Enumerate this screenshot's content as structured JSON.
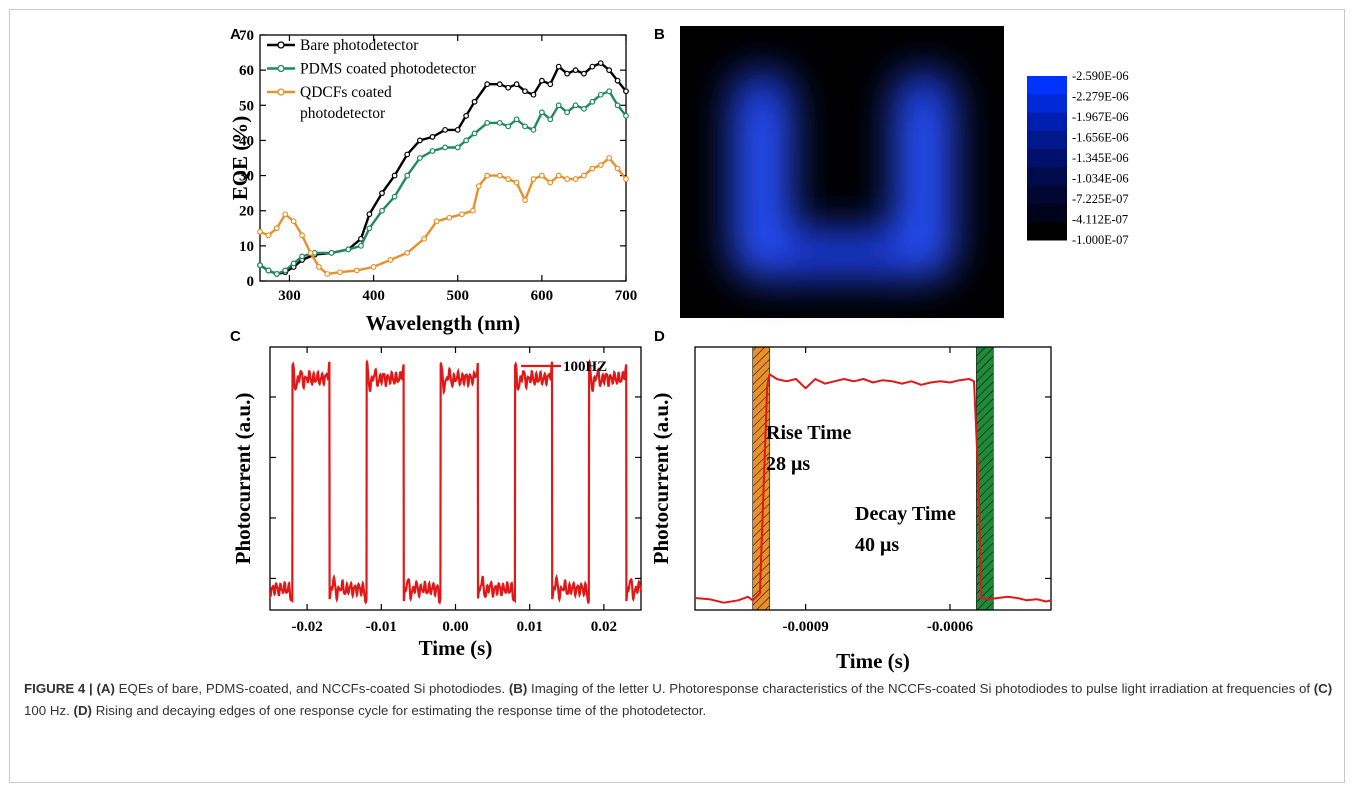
{
  "caption": {
    "figure_label": "FIGURE 4 |",
    "parts": [
      {
        "bold": true,
        "text": "(A)"
      },
      {
        "bold": false,
        "text": " EQEs of bare, PDMS-coated, and NCCFs-coated Si photodiodes. "
      },
      {
        "bold": true,
        "text": "(B)"
      },
      {
        "bold": false,
        "text": " Imaging of the letter U. Photoresponse characteristics of the NCCFs-coated Si photodiodes to pulse light irradiation at frequencies of "
      },
      {
        "bold": true,
        "text": "(C)"
      },
      {
        "bold": false,
        "text": " 100 Hz. "
      },
      {
        "bold": true,
        "text": "(D)"
      },
      {
        "bold": false,
        "text": " Rising and decaying edges of one response cycle for estimating the response time of the photodetector."
      }
    ]
  },
  "chart_data": [
    {
      "panel": "A",
      "type": "line",
      "xlabel": "Wavelength (nm)",
      "ylabel": "EQE (%)",
      "xlim": [
        265,
        700
      ],
      "ylim": [
        0,
        70
      ],
      "xticks": [
        300,
        400,
        500,
        600,
        700
      ],
      "yticks": [
        0,
        10,
        20,
        30,
        40,
        50,
        60,
        70
      ],
      "legend_position": "top-left",
      "series": [
        {
          "name": "Bare photodetector",
          "color": "#000000",
          "x": [
            265,
            275,
            285,
            295,
            305,
            315,
            330,
            350,
            370,
            385,
            395,
            410,
            425,
            440,
            455,
            470,
            485,
            500,
            510,
            520,
            535,
            550,
            560,
            570,
            580,
            590,
            600,
            610,
            620,
            630,
            640,
            650,
            660,
            670,
            680,
            690,
            700
          ],
          "y": [
            4.5,
            3,
            2,
            2.5,
            4,
            6,
            7.5,
            8,
            9,
            12,
            19,
            25,
            30,
            36,
            40,
            41,
            43,
            43,
            47,
            51,
            56,
            56,
            55,
            56,
            54,
            53,
            57,
            56,
            61,
            59,
            60,
            59,
            61,
            62,
            60,
            57,
            54
          ]
        },
        {
          "name": "PDMS coated photodetector",
          "color": "#1f8a5a",
          "x": [
            265,
            275,
            285,
            295,
            305,
            315,
            330,
            350,
            370,
            385,
            395,
            410,
            425,
            440,
            455,
            470,
            485,
            500,
            510,
            520,
            535,
            550,
            560,
            570,
            580,
            590,
            600,
            610,
            620,
            630,
            640,
            650,
            660,
            670,
            680,
            690,
            700
          ],
          "y": [
            4.5,
            3,
            2,
            3,
            5,
            7,
            8,
            8,
            9,
            10,
            15,
            20,
            24,
            30,
            35,
            37,
            38,
            38,
            40,
            42,
            45,
            45,
            44,
            46,
            44,
            43,
            48,
            46,
            50,
            48,
            50,
            49,
            51,
            53,
            54,
            50,
            47
          ]
        },
        {
          "name": "QDCFs coated\nphotodetector",
          "color": "#e8902a",
          "x": [
            265,
            275,
            285,
            295,
            305,
            315,
            325,
            335,
            345,
            360,
            380,
            400,
            420,
            440,
            460,
            475,
            490,
            505,
            518,
            525,
            535,
            550,
            560,
            570,
            580,
            590,
            600,
            610,
            620,
            630,
            640,
            650,
            660,
            670,
            680,
            690,
            700
          ],
          "y": [
            14,
            13,
            15,
            19,
            17,
            13,
            8,
            4,
            2,
            2.5,
            3,
            4,
            6,
            8,
            12,
            17,
            18,
            19,
            20,
            27,
            30,
            30,
            29,
            28,
            23,
            29,
            30,
            28,
            30,
            29,
            29,
            30,
            32,
            33,
            35,
            32,
            29
          ]
        }
      ]
    },
    {
      "panel": "B",
      "type": "heatmap",
      "colorbar_labels": [
        "-2.590E-06",
        "-2.279E-06",
        "-1.967E-06",
        "-1.656E-06",
        "-1.345E-06",
        "-1.034E-06",
        "-7.225E-07",
        "-4.112E-07",
        "-1.000E-07"
      ],
      "colorbar_colors": [
        "#0033ff",
        "#0028d6",
        "#001fb0",
        "#00188c",
        "#00116b",
        "#000b4d",
        "#000733",
        "#00031c",
        "#000000"
      ]
    },
    {
      "panel": "C",
      "type": "line",
      "xlabel": "Time (s)",
      "ylabel": "Photocurrent (a.u.)",
      "xlim": [
        -0.025,
        0.025
      ],
      "ylim": [
        0,
        1
      ],
      "xticks": [
        -0.02,
        -0.01,
        0.0,
        0.01,
        0.02
      ],
      "xtick_labels": [
        "-0.02",
        "-0.01",
        "0.00",
        "0.01",
        "0.02"
      ],
      "legend_position": "top-right",
      "series": [
        {
          "name": "100HZ",
          "color": "#e01818",
          "period": 0.01,
          "high_start": -0.022,
          "high_duration": 0.005,
          "low_level": 0.08,
          "high_level": 0.88
        }
      ]
    },
    {
      "panel": "D",
      "type": "line",
      "xlabel": "Time (s)",
      "ylabel": "Photocurrent (a.u.)",
      "xlim": [
        -0.00113,
        -0.00039
      ],
      "ylim": [
        0,
        1
      ],
      "xticks": [
        -0.0009,
        -0.0006
      ],
      "xtick_labels": [
        "-0.0009",
        "-0.0006"
      ],
      "series": [
        {
          "name": "",
          "color": "#e01818",
          "x": [
            -0.00113,
            -0.0011,
            -0.00107,
            -0.00104,
            -0.00102,
            -0.00101,
            -0.000995,
            -0.00098,
            -0.000975,
            -0.00096,
            -0.00094,
            -0.00092,
            -0.0009,
            -0.00088,
            -0.00086,
            -0.00084,
            -0.00082,
            -0.0008,
            -0.00078,
            -0.00076,
            -0.00074,
            -0.00072,
            -0.0007,
            -0.00068,
            -0.00066,
            -0.00064,
            -0.00062,
            -0.0006,
            -0.00058,
            -0.00056,
            -0.00055,
            -0.00054,
            -0.000535,
            -0.00052,
            -0.0005,
            -0.00048,
            -0.00046,
            -0.00044,
            -0.00042,
            -0.0004,
            -0.00039
          ],
          "y": [
            0.03,
            0.025,
            0.01,
            0.02,
            0.035,
            0.02,
            0.05,
            0.94,
            0.99,
            0.97,
            0.96,
            0.97,
            0.93,
            0.97,
            0.95,
            0.96,
            0.97,
            0.96,
            0.97,
            0.955,
            0.965,
            0.96,
            0.95,
            0.96,
            0.945,
            0.955,
            0.96,
            0.955,
            0.965,
            0.97,
            0.96,
            0.5,
            0.03,
            0.025,
            0.03,
            0.035,
            0.03,
            0.02,
            0.025,
            0.015,
            0.02
          ]
        }
      ],
      "rise_band": [
        -0.00101,
        -0.000975
      ],
      "decay_band": [
        -0.000545,
        -0.00051
      ],
      "annotations": [
        {
          "line1": "Rise Time",
          "line2": "28 μs"
        },
        {
          "line1": "Decay Time",
          "line2": "40 μs"
        }
      ]
    }
  ]
}
